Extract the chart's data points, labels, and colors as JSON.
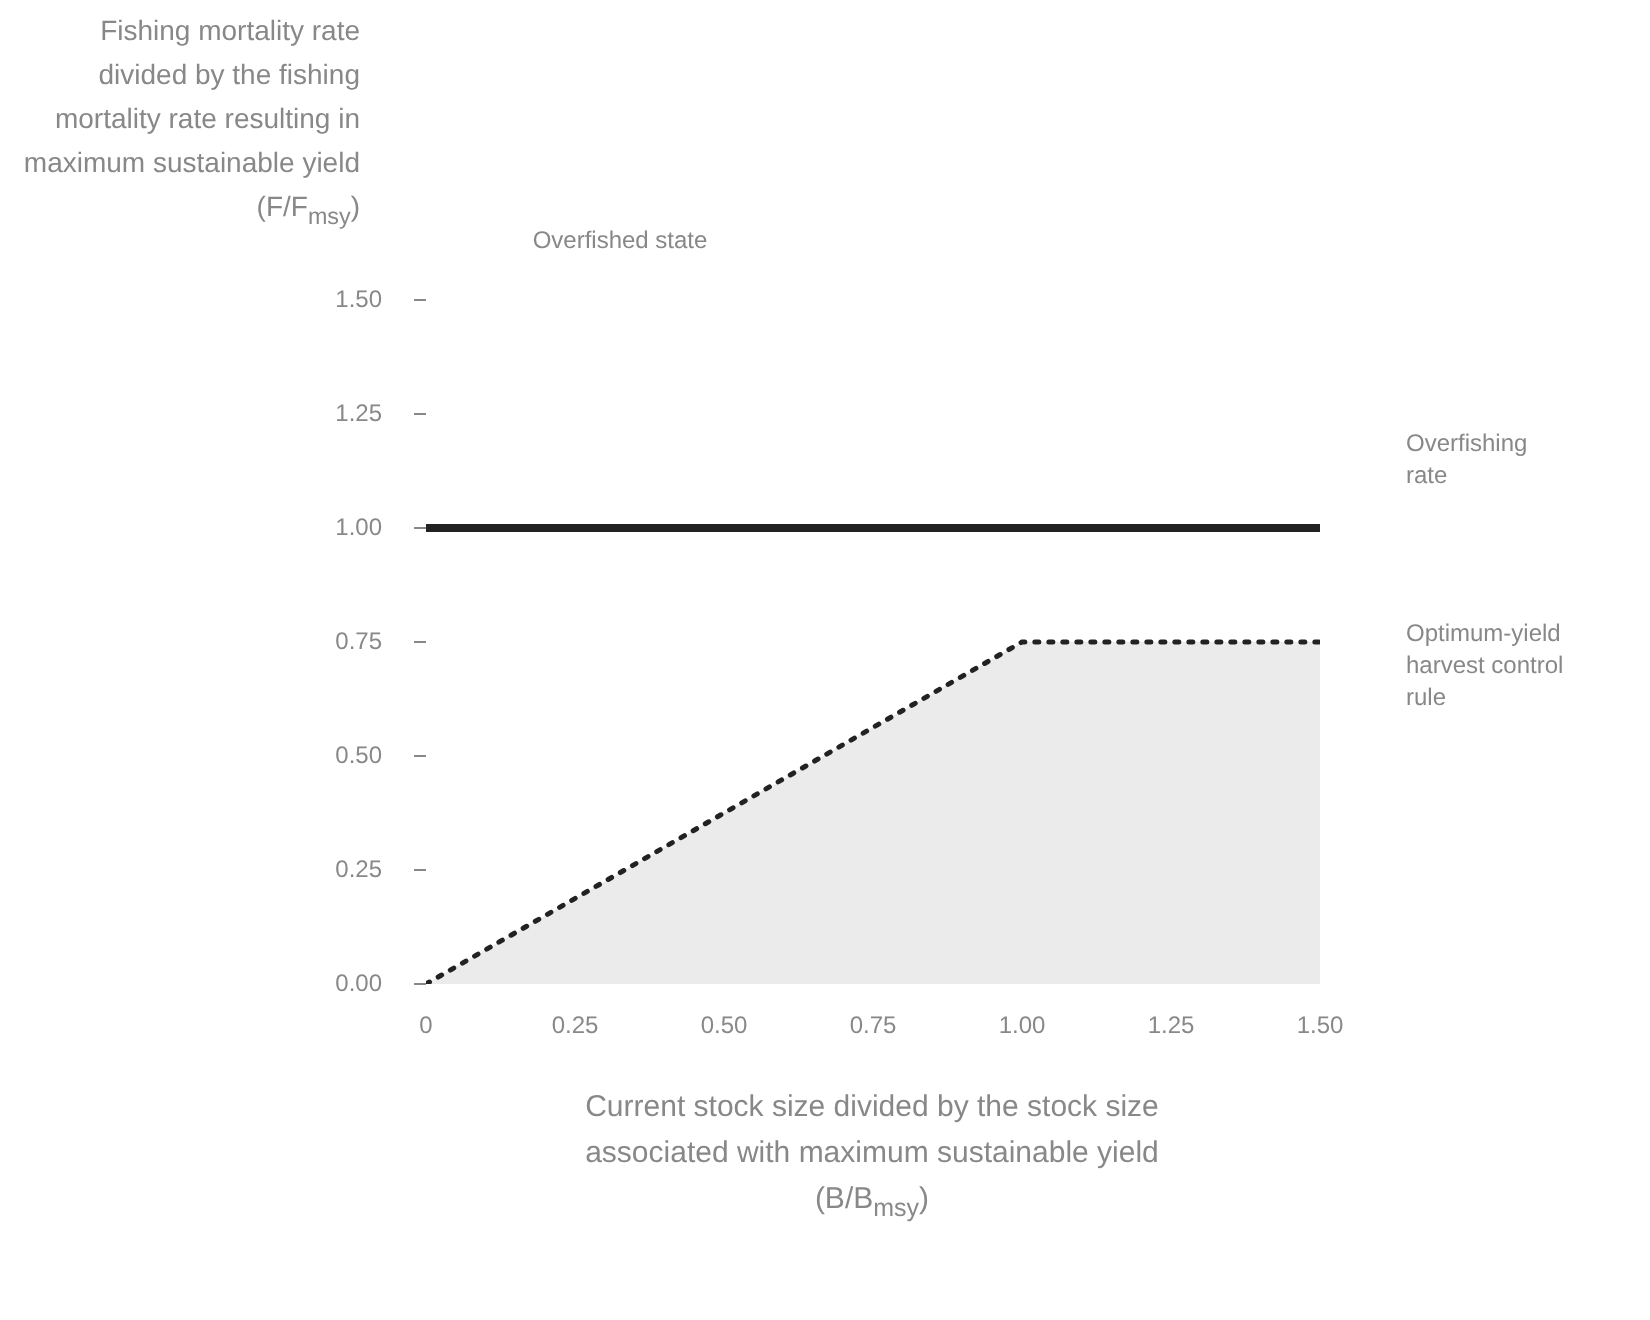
{
  "chart_data": {
    "type": "line",
    "ylabel": "Fishing mortality rate divided by the fishing mortality rate resulting in maximum sustainable yield (F/F$_{msy}$)",
    "xlabel": "Current stock size divided by the stock size associated with maximum sustainable yield (B/B$_{msy}$)",
    "annotations": [
      "Overfished state"
    ],
    "xlim": [
      0,
      1.5
    ],
    "xticks": [
      0,
      {
        "value": 0.25,
        "label": "0.25"
      },
      {
        "value": 0.5,
        "label": "0.50"
      },
      {
        "value": 0.75,
        "label": "0.75"
      },
      {
        "value": 1,
        "label": "1.00"
      },
      {
        "value": 1.25,
        "label": "1.25"
      },
      {
        "value": 1.5,
        "label": "1.50"
      }
    ],
    "ylim": [
      0,
      1.5
    ],
    "yticks": [
      {
        "value": 0,
        "label": "0.00"
      },
      {
        "value": 0.25,
        "label": "0.25"
      },
      {
        "value": 0.5,
        "label": "0.50"
      },
      {
        "value": 0.75,
        "label": "0.75"
      },
      {
        "value": 1,
        "label": "1.00"
      },
      {
        "value": 1.25,
        "label": "1.25"
      },
      {
        "value": 1.5,
        "label": "1.50"
      }
    ],
    "grid": false,
    "legend": false,
    "marker": "none",
    "series": [
      {
        "name": "Overfishing rate",
        "type": "line",
        "line_style": "solid",
        "color": "#222222",
        "x": [
          0,
          1.5
        ],
        "values": [
          1,
          1
        ]
      },
      {
        "name": "Optimum-yield harvest control rule",
        "type": "area",
        "line_style": "dotted",
        "color": "#222222",
        "x": [
          0,
          1,
          1.5
        ],
        "values": [
          0,
          0.75,
          0.75
        ]
      }
    ]
  }
}
